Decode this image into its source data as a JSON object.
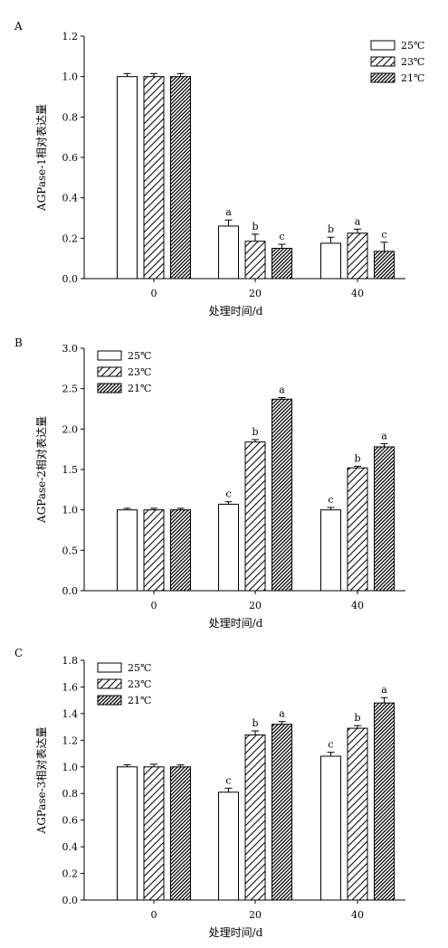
{
  "chart_data": [
    {
      "type": "bar",
      "panel_label": "A",
      "xlabel": "处理时间/d",
      "ylabel": "AGPase-1相对表达量",
      "categories": [
        "0",
        "20",
        "40"
      ],
      "ylim": [
        0,
        1.2
      ],
      "yticks": [
        "0.0",
        "0.2",
        "0.4",
        "0.6",
        "0.8",
        "1.0",
        "1.2"
      ],
      "legend_position": "top-right",
      "series": [
        {
          "name": "25℃",
          "pattern": "solid-white",
          "values": [
            1.0,
            0.26,
            0.175
          ],
          "errors": [
            0.015,
            0.03,
            0.03
          ],
          "labels": [
            "",
            "a",
            "b"
          ]
        },
        {
          "name": "23℃",
          "pattern": "sparse-hatch",
          "values": [
            1.0,
            0.185,
            0.225
          ],
          "errors": [
            0.015,
            0.035,
            0.02
          ],
          "labels": [
            "",
            "b",
            "a"
          ]
        },
        {
          "name": "21℃",
          "pattern": "dense-hatch",
          "values": [
            1.0,
            0.15,
            0.135
          ],
          "errors": [
            0.015,
            0.02,
            0.045
          ],
          "labels": [
            "",
            "c",
            "c"
          ]
        }
      ]
    },
    {
      "type": "bar",
      "panel_label": "B",
      "xlabel": "处理时间/d",
      "ylabel": "AGPase-2相对表达量",
      "categories": [
        "0",
        "20",
        "40"
      ],
      "ylim": [
        0,
        3.0
      ],
      "yticks": [
        "0.0",
        "0.5",
        "1.0",
        "1.5",
        "2.0",
        "2.5",
        "3.0"
      ],
      "legend_position": "top-left",
      "series": [
        {
          "name": "25℃",
          "pattern": "solid-white",
          "values": [
            1.0,
            1.07,
            1.0
          ],
          "errors": [
            0.02,
            0.03,
            0.03
          ],
          "labels": [
            "",
            "c",
            "c"
          ]
        },
        {
          "name": "23℃",
          "pattern": "sparse-hatch",
          "values": [
            1.0,
            1.84,
            1.52
          ],
          "errors": [
            0.02,
            0.03,
            0.02
          ],
          "labels": [
            "",
            "b",
            "b"
          ]
        },
        {
          "name": "21℃",
          "pattern": "dense-hatch",
          "values": [
            1.0,
            2.37,
            1.78
          ],
          "errors": [
            0.02,
            0.02,
            0.04
          ],
          "labels": [
            "",
            "a",
            "a"
          ]
        }
      ]
    },
    {
      "type": "bar",
      "panel_label": "C",
      "xlabel": "处理时间/d",
      "ylabel": "AGPase-3相对表达量",
      "categories": [
        "0",
        "20",
        "40"
      ],
      "ylim": [
        0,
        1.8
      ],
      "yticks": [
        "0.0",
        "0.2",
        "0.4",
        "0.6",
        "0.8",
        "1.0",
        "1.2",
        "1.4",
        "1.6",
        "1.8"
      ],
      "legend_position": "top-left",
      "series": [
        {
          "name": "25℃",
          "pattern": "solid-white",
          "values": [
            1.0,
            0.81,
            1.08
          ],
          "errors": [
            0.015,
            0.03,
            0.03
          ],
          "labels": [
            "",
            "c",
            "c"
          ]
        },
        {
          "name": "23℃",
          "pattern": "sparse-hatch",
          "values": [
            1.0,
            1.24,
            1.29
          ],
          "errors": [
            0.02,
            0.03,
            0.02
          ],
          "labels": [
            "",
            "b",
            "b"
          ]
        },
        {
          "name": "21℃",
          "pattern": "dense-hatch",
          "values": [
            1.0,
            1.32,
            1.48
          ],
          "errors": [
            0.015,
            0.02,
            0.04
          ],
          "labels": [
            "",
            "a",
            "a"
          ]
        }
      ]
    }
  ]
}
